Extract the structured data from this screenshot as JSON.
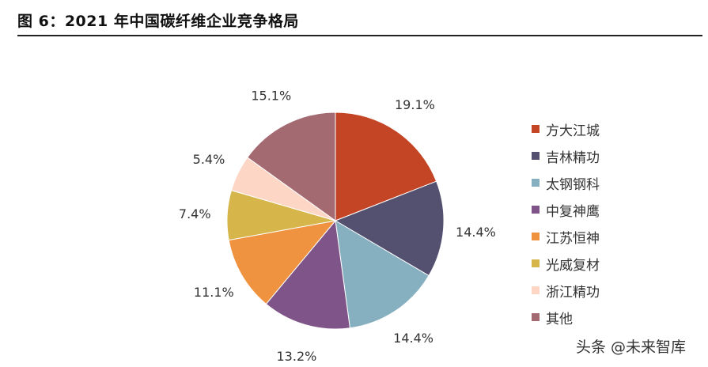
{
  "title": "图 6：2021 年中国碳纤维企业竞争格局",
  "watermark": "头条 @未来智库",
  "chart_data": {
    "type": "pie",
    "categories": [
      "方大江城",
      "吉林精功",
      "太钢钢科",
      "中复神鹰",
      "江苏恒神",
      "光威复材",
      "浙江精功",
      "其他"
    ],
    "values": [
      19.1,
      14.4,
      14.4,
      13.2,
      11.1,
      7.4,
      5.4,
      15.1
    ],
    "labels": [
      "19.1%",
      "14.4%",
      "14.4%",
      "13.2%",
      "11.1%",
      "7.4%",
      "5.4%",
      "15.1%"
    ],
    "colors": [
      "#C44525",
      "#545070",
      "#86AFC0",
      "#7F5589",
      "#F09340",
      "#D6B64B",
      "#FDD6C5",
      "#A46A72"
    ],
    "legend_position": "right"
  }
}
